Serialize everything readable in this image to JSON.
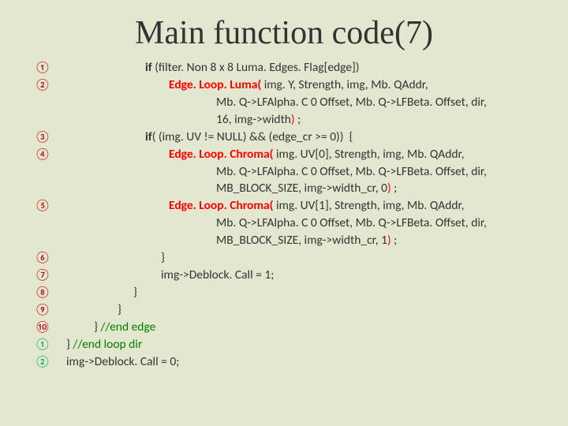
{
  "title": "Main function code(7)",
  "colors": {
    "background": "#e3e7cf",
    "num_red": "#c00000",
    "num_green": "#00b050",
    "fn_red": "#ff0000",
    "comment": "#008000",
    "text": "#333333"
  },
  "lines": [
    {
      "num": "①",
      "numColor": "red",
      "indent": 110,
      "segments": [
        {
          "t": "if ",
          "b": true
        },
        {
          "t": "(filter. Non 8 x 8 Luma. Edges. Flag[edge])"
        }
      ]
    },
    {
      "num": "②",
      "numColor": "red",
      "indent": 140,
      "segments": [
        {
          "t": "Edge. Loop. Luma(",
          "c": "fn"
        },
        {
          "t": " img. Y, Strength, img, Mb. QAddr,"
        }
      ]
    },
    {
      "num": "",
      "numColor": "",
      "indent": 200,
      "segments": [
        {
          "t": "Mb. Q->LFAlpha. C 0 Offset, Mb. Q->LFBeta. Offset, dir,"
        }
      ]
    },
    {
      "num": "",
      "numColor": "",
      "indent": 200,
      "segments": [
        {
          "t": "16, img->width"
        },
        {
          "t": ")",
          "c": "paren"
        },
        {
          "t": " ;"
        }
      ]
    },
    {
      "num": "③",
      "numColor": "red",
      "indent": 110,
      "segments": [
        {
          "t": "if",
          "b": true
        },
        {
          "t": "( (img. UV != NULL) && (edge_cr >= 0))  {"
        }
      ]
    },
    {
      "num": "④",
      "numColor": "red",
      "indent": 140,
      "segments": [
        {
          "t": "Edge. Loop. Chroma(",
          "c": "fn"
        },
        {
          "t": " img. UV[0], Strength, img, Mb. QAddr,"
        }
      ]
    },
    {
      "num": "",
      "numColor": "",
      "indent": 200,
      "segments": [
        {
          "t": "Mb. Q->LFAlpha. C 0 Offset, Mb. Q->LFBeta. Offset, dir,"
        }
      ]
    },
    {
      "num": "",
      "numColor": "",
      "indent": 200,
      "segments": [
        {
          "t": "MB_BLOCK_SIZE, img->width_cr, 0"
        },
        {
          "t": ")",
          "c": "paren"
        },
        {
          "t": " ;"
        }
      ]
    },
    {
      "num": "⑤",
      "numColor": "red",
      "indent": 140,
      "segments": [
        {
          "t": "Edge. Loop. Chroma(",
          "c": "fn"
        },
        {
          "t": " img. UV[1], Strength, img, Mb. QAddr,"
        }
      ]
    },
    {
      "num": "",
      "numColor": "",
      "indent": 200,
      "segments": [
        {
          "t": "Mb. Q->LFAlpha. C 0 Offset, Mb. Q->LFBeta. Offset, dir,"
        }
      ]
    },
    {
      "num": "",
      "numColor": "",
      "indent": 200,
      "segments": [
        {
          "t": "MB_BLOCK_SIZE, img->width_cr, 1"
        },
        {
          "t": ")",
          "c": "paren"
        },
        {
          "t": " ;"
        }
      ]
    },
    {
      "num": "⑥",
      "numColor": "red",
      "indent": 130,
      "segments": [
        {
          "t": "}"
        }
      ]
    },
    {
      "num": "⑦",
      "numColor": "red",
      "indent": 130,
      "segments": [
        {
          "t": "img->Deblock. Call = 1;"
        }
      ]
    },
    {
      "num": "⑧",
      "numColor": "red",
      "indent": 95,
      "segments": [
        {
          "t": "}"
        }
      ]
    },
    {
      "num": "⑨",
      "numColor": "red",
      "indent": 75,
      "segments": [
        {
          "t": "}"
        }
      ]
    },
    {
      "num": "⑩",
      "numColor": "red",
      "indent": 45,
      "segments": [
        {
          "t": "} "
        },
        {
          "t": "//end edge",
          "c": "cmnt"
        }
      ]
    },
    {
      "num": "①",
      "numColor": "green",
      "indent": 10,
      "segments": [
        {
          "t": "} "
        },
        {
          "t": "//end loop dir",
          "c": "cmnt"
        }
      ]
    },
    {
      "num": "②",
      "numColor": "green",
      "indent": 10,
      "segments": [
        {
          "t": "img->Deblock. Call = 0;"
        }
      ]
    }
  ]
}
